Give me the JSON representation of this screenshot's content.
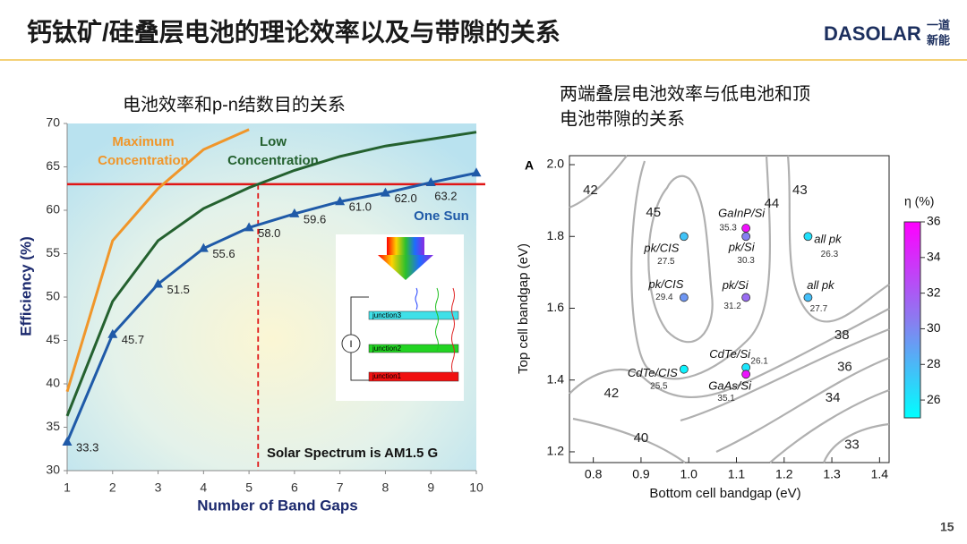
{
  "slide_title": "钙钛矿/硅叠层电池的理论效率以及与带隙的关系",
  "logo": {
    "name": "DASOLAR",
    "cn": [
      "一道",
      "新能"
    ]
  },
  "page_number": "15",
  "chart_data": [
    {
      "type": "line",
      "title": "电池效率和p-n结数目的关系",
      "x_label": "Number of Band Gaps",
      "y_label": "Efficiency (%)",
      "x": [
        1,
        2,
        3,
        4,
        5,
        6,
        7,
        8,
        9,
        10
      ],
      "xlim": [
        1,
        10
      ],
      "xticks": [
        1,
        2,
        3,
        4,
        5,
        6,
        7,
        8,
        9,
        10
      ],
      "ylim": [
        30,
        70
      ],
      "yticks": [
        30,
        35,
        40,
        45,
        50,
        55,
        60,
        65,
        70
      ],
      "series": [
        {
          "name": "One Sun",
          "color": "#1f5aa8",
          "marker": "triangle",
          "values": [
            33.3,
            45.7,
            51.5,
            55.6,
            58.0,
            59.6,
            61.0,
            62.0,
            63.2,
            64.3
          ],
          "value_labels": [
            "33.3",
            "45.7",
            "51.5",
            "55.6",
            "58.0",
            "59.6",
            "61.0",
            "62.0",
            "63.2",
            null
          ]
        },
        {
          "name": "Low Concentration",
          "color": "#24612f",
          "values": [
            36.3,
            49.5,
            56.5,
            60.2,
            62.6,
            64.6,
            66.2,
            67.4,
            68.2,
            69.0
          ]
        },
        {
          "name": "Maximum Concentration",
          "color": "#f0962a",
          "values": [
            39.1,
            56.5,
            62.5,
            67.0,
            69.3,
            null,
            null,
            null,
            null,
            null
          ]
        }
      ],
      "hline": 63,
      "vline": 5.2,
      "annotation": "Solar Spectrum is AM1.5 G",
      "inset": {
        "labels": [
          "junction3",
          "junction2",
          "junction1"
        ],
        "meter": "I"
      }
    },
    {
      "type": "contour",
      "panel_label": "A",
      "title": [
        "两端叠层电池效率与低电池和顶",
        "电池带隙的关系"
      ],
      "x_label": "Bottom cell bandgap (eV)",
      "y_label": "Top cell bandgap (eV)",
      "xlim": [
        0.75,
        1.42
      ],
      "xticks": [
        0.8,
        0.9,
        {
          "value": 1.0,
          "label": "1.0"
        },
        1.1,
        1.2,
        1.3,
        1.4
      ],
      "ylim": [
        1.17,
        2.025
      ],
      "yticks": [
        1.2,
        1.4,
        1.6,
        1.8,
        {
          "value": 2.0,
          "label": "2.0"
        }
      ],
      "points": [
        {
          "name": "pk/CIS",
          "x": 0.99,
          "y": 1.8,
          "value": 27.5
        },
        {
          "name": "pk/CIS",
          "x": 0.99,
          "y": 1.63,
          "value": 29.4
        },
        {
          "name": "GaInP/Si",
          "x": 1.12,
          "y": 1.823,
          "value": 35.3
        },
        {
          "name": "pk/Si",
          "x": 1.12,
          "y": 1.8,
          "value": 30.3
        },
        {
          "name": "pk/Si",
          "x": 1.12,
          "y": 1.63,
          "value": 31.2
        },
        {
          "name": "all pk",
          "x": 1.25,
          "y": 1.8,
          "value": 26.3
        },
        {
          "name": "all pk",
          "x": 1.25,
          "y": 1.63,
          "value": 27.7
        },
        {
          "name": "CdTe/CIS",
          "x": 0.99,
          "y": 1.43,
          "value": 25.5
        },
        {
          "name": "CdTe/Si",
          "x": 1.12,
          "y": 1.435,
          "value": 26.1
        },
        {
          "name": "GaAs/Si",
          "x": 1.12,
          "y": 1.416,
          "value": 35.1
        }
      ],
      "contour_labels": [
        {
          "level": 42,
          "x": 0.794,
          "y": 1.928
        },
        {
          "level": 45,
          "x": 0.926,
          "y": 1.865
        },
        {
          "level": 44,
          "x": 1.174,
          "y": 1.89
        },
        {
          "level": 43,
          "x": 1.233,
          "y": 1.928
        },
        {
          "level": 38,
          "x": 1.321,
          "y": 1.524
        },
        {
          "level": 36,
          "x": 1.327,
          "y": 1.436
        },
        {
          "level": 34,
          "x": 1.302,
          "y": 1.349
        },
        {
          "level": 33,
          "x": 1.342,
          "y": 1.219
        },
        {
          "level": 40,
          "x": 0.9,
          "y": 1.237
        },
        {
          "level": 42,
          "x": 0.838,
          "y": 1.362
        }
      ],
      "colorbar": {
        "label": "η (%)",
        "lim": [
          25,
          36
        ],
        "ticks": [
          26,
          28,
          30,
          32,
          34,
          36
        ],
        "colors": [
          "#00ffff",
          "#8a7cf0",
          "#ff00ff"
        ]
      }
    }
  ]
}
